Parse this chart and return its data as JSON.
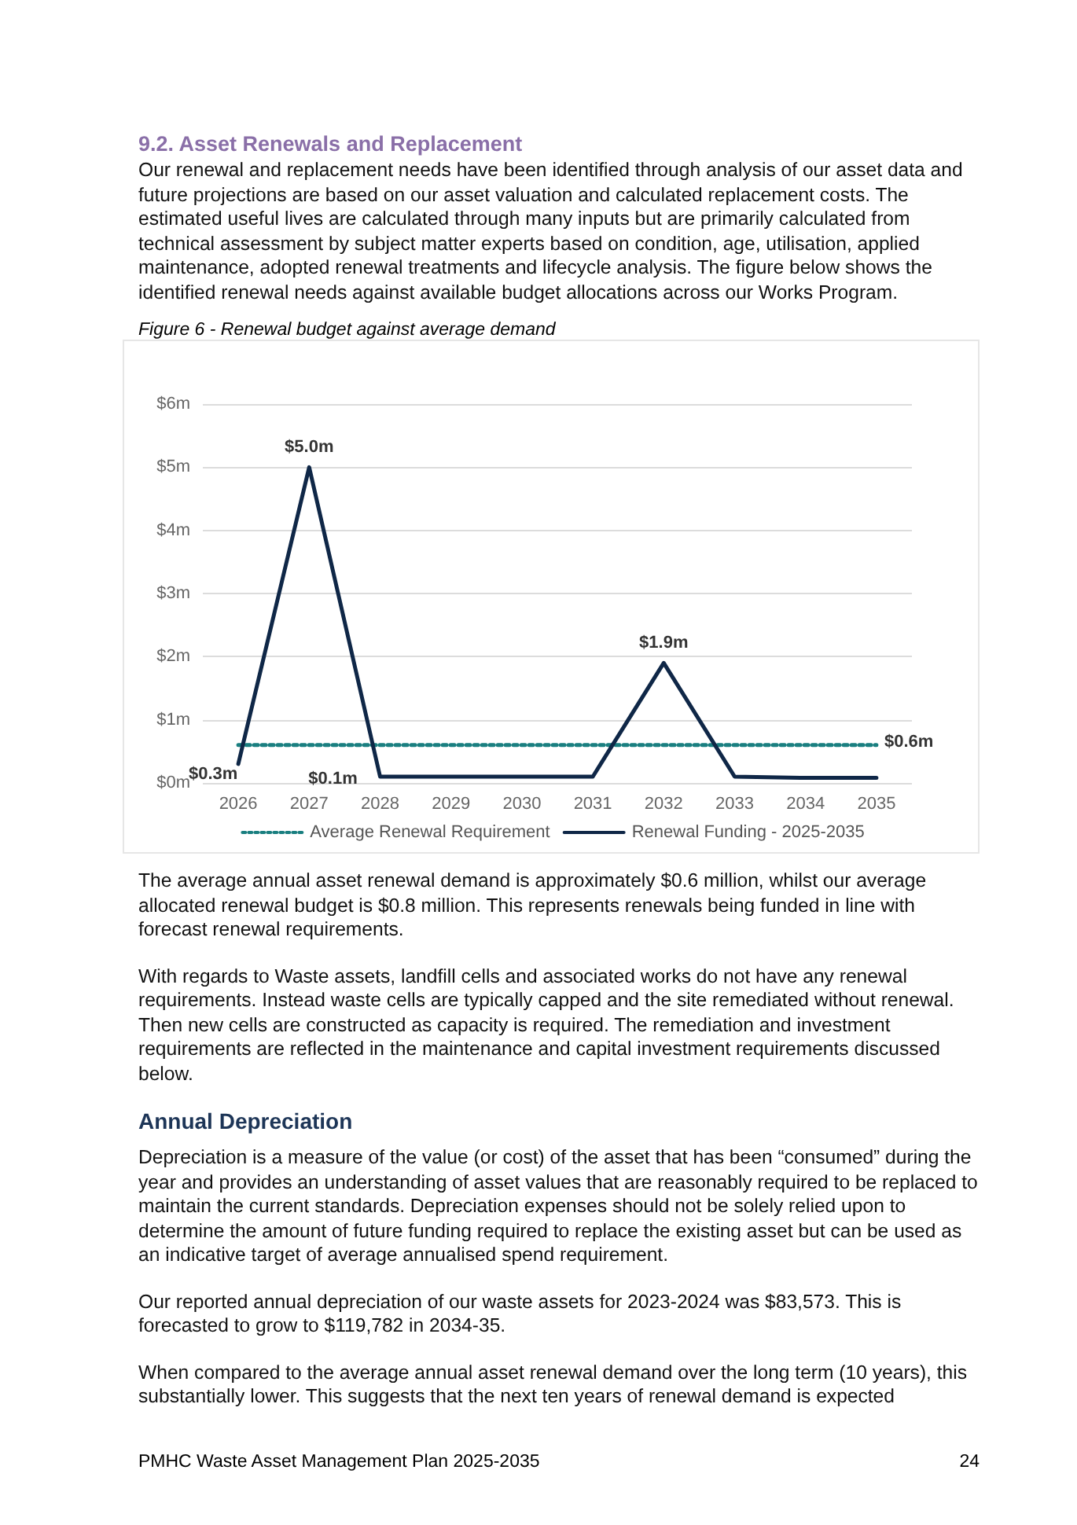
{
  "chart_data": {
    "type": "line",
    "title": "9.2.  Asset Renewals and Replacement",
    "subtitle": "Our renewal and replacement needs have been identified through analysis of our asset data and future projections are based on our asset valuation and calculated replacement costs. The estimated useful lives are calculated through many inputs but are primarily calculated from technical assessment by subject matter experts based on condition, age, utilisation, applied maintenance, adopted renewal treatments and lifecycle analysis. The figure below shows the identified renewal needs against available budget allocations across our Works Program.",
    "annotations": [
      "Figure 6 - Renewal budget against average demand",
      "The average annual asset renewal demand is approximately $0.6 million, whilst our average allocated renewal budget is $0.8 million. This represents renewals being funded in line with forecast renewal requirements.",
      "With regards to Waste assets, landfill cells and associated works do not have any renewal requirements. Instead waste cells are typically capped and the site remediated without renewal. Then new cells are constructed as capacity is required. The remediation and investment requirements are reflected in the maintenance and capital investment requirements discussed below.",
      "Annual Depreciation",
      "Depreciation is a measure of the value (or cost) of the asset that has been “consumed” during the year and provides an understanding of asset values that are reasonably required to be replaced to maintain the current standards. Depreciation expenses should not be solely relied upon to determine the amount of future funding required to replace the existing asset but can be used as an indicative target of average annualised spend requirement.",
      "Our reported annual depreciation of our waste assets for 2023-2024 was $83,573. This is forecasted to grow to $119,782 in 2034-35.",
      "When compared to the average annual asset renewal demand over the long term (10 years), this substantially lower. This suggests that the next ten years of renewal demand is expected",
      "PMHC Waste Asset Management Plan 2025-2035",
      "24"
    ],
    "categories": [
      "2026",
      "2027",
      "2028",
      "2029",
      "2030",
      "2031",
      "2032",
      "2033",
      "2034",
      "2035"
    ],
    "series": [
      {
        "name": "Average Renewal Requirement",
        "color": "#1a7f80",
        "line_style": "dotted",
        "values": [
          0.6,
          0.6,
          0.6,
          0.6,
          0.6,
          0.6,
          0.6,
          0.6,
          0.6,
          0.6
        ],
        "value_labels": [
          null,
          null,
          null,
          null,
          null,
          null,
          null,
          null,
          null,
          "$0.6m"
        ]
      },
      {
        "name": "Renewal Funding - 2025-2035",
        "color": "#0f2747",
        "line_style": "solid",
        "values": [
          0.3,
          5.0,
          0.1,
          0.1,
          0.1,
          0.1,
          1.9,
          0.1,
          0.08,
          0.08
        ],
        "value_labels": [
          "$0.3m",
          "$5.0m",
          "$0.1m",
          null,
          null,
          null,
          "$1.9m",
          null,
          null,
          null
        ]
      }
    ],
    "ylim": [
      0,
      6
    ],
    "yticks": [
      {
        "value": 0,
        "label": "$0m"
      },
      {
        "value": 1,
        "label": "$1m"
      },
      {
        "value": 2,
        "label": "$2m"
      },
      {
        "value": 3,
        "label": "$3m"
      },
      {
        "value": 4,
        "label": "$4m"
      },
      {
        "value": 5,
        "label": "$5m"
      },
      {
        "value": 6,
        "label": "$6m"
      }
    ],
    "grid": "y",
    "legend": "bottom",
    "marker": "none"
  }
}
